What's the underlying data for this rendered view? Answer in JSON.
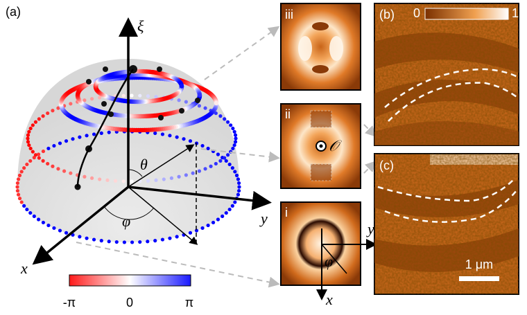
{
  "panel_a": {
    "label": "(a)",
    "axes": {
      "xi": "ξ",
      "theta": "θ",
      "phi": "φ",
      "y": "y",
      "x": "x"
    },
    "colorbar": {
      "min": "-π",
      "mid": "0",
      "max": "π"
    }
  },
  "insets": {
    "iii": "iii",
    "ii": "ii",
    "i": "i",
    "origin": "𝒪",
    "y": "y",
    "x": "x",
    "phi": "φ"
  },
  "panel_b": {
    "label": "(b)",
    "colorbar_min": 0,
    "colorbar_max": 1
  },
  "panel_c": {
    "label": "(c)",
    "scale_bar": "1 μm"
  }
}
